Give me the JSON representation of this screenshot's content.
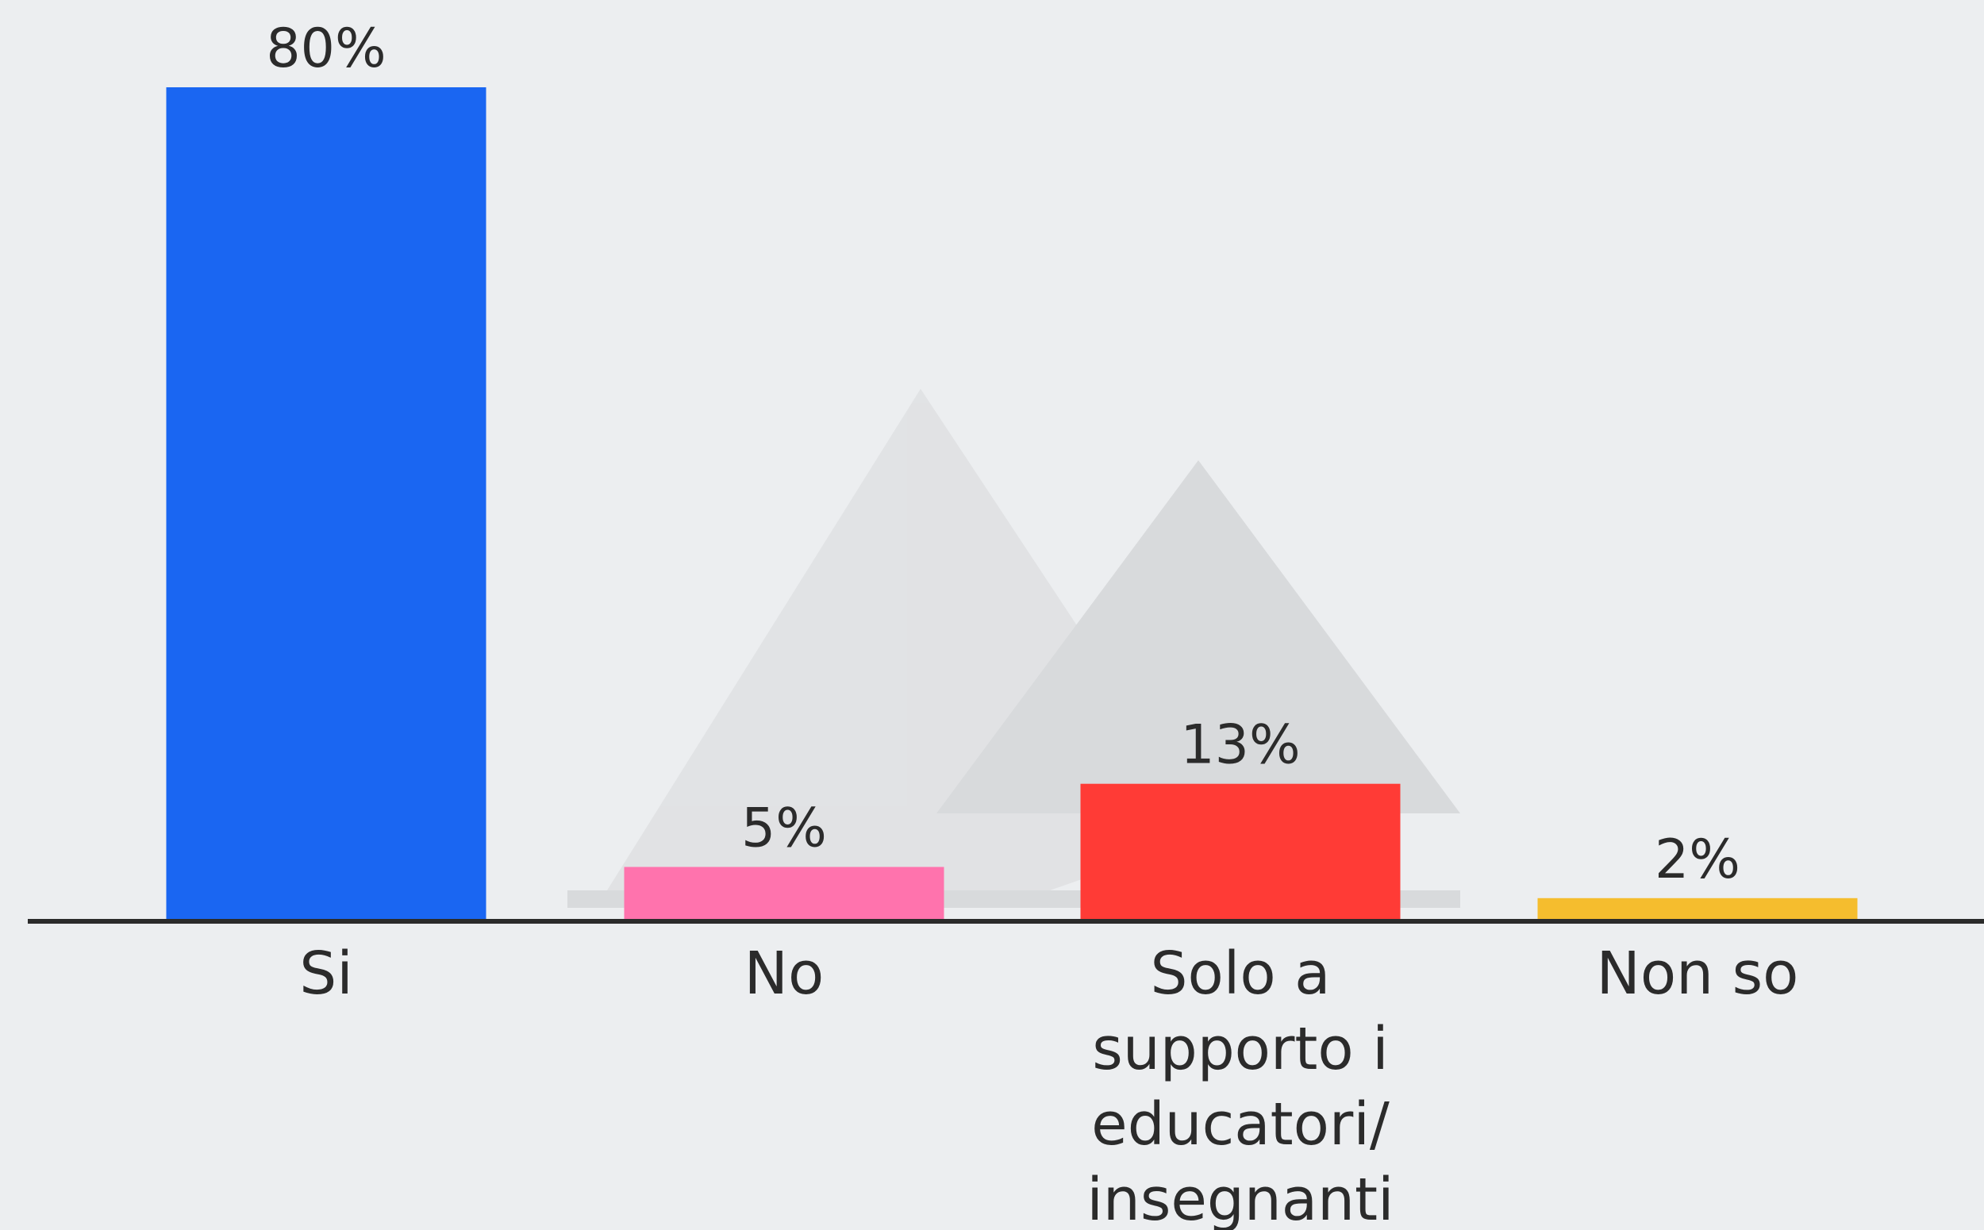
{
  "chart_data": {
    "type": "bar",
    "categories": [
      "Si",
      "No",
      "Solo a supporto i educatori/ insegnanti",
      "Non so"
    ],
    "category_lines": [
      [
        "Si"
      ],
      [
        "No"
      ],
      [
        "Solo a",
        "supporto i",
        "educatori/",
        "insegnanti"
      ],
      [
        "Non so"
      ]
    ],
    "values": [
      80,
      5,
      13,
      2
    ],
    "value_labels": [
      "80%",
      "5%",
      "13%",
      "2%"
    ],
    "colors": [
      "#1a66f2",
      "#ff73ad",
      "#ff3b36",
      "#f5bd2e"
    ],
    "title": "",
    "xlabel": "",
    "ylabel": "",
    "ylim": [
      0,
      80
    ],
    "grid": false,
    "legend": "none"
  },
  "background_color": "#eceef0",
  "axis_color": "#2b2b2b"
}
